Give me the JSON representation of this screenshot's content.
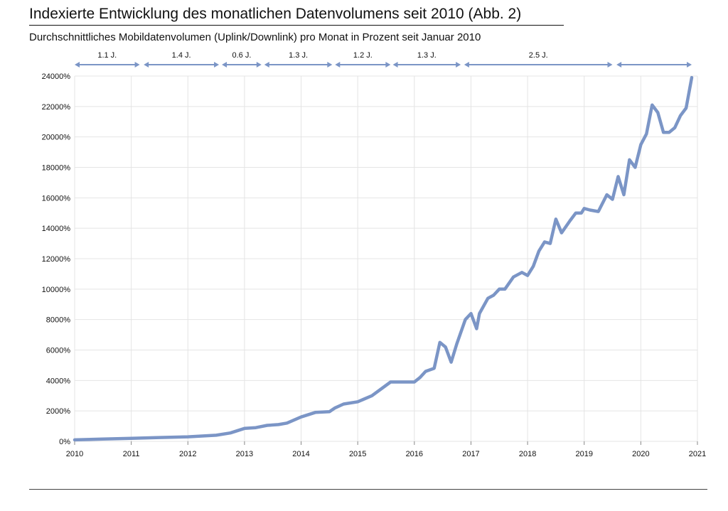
{
  "title": "Indexierte Entwicklung des monatlichen Datenvolumens seit 2010  (Abb. 2)",
  "subtitle": "Durchschnittliches Mobildatenvolumen (Uplink/Downlink) pro Monat in Prozent seit Januar 2010",
  "colors": {
    "line": "#7b95c6",
    "grid": "#e4e4e4",
    "text": "#111111"
  },
  "chart_data": {
    "type": "line",
    "title": "Indexierte Entwicklung des monatlichen Datenvolumens seit 2010  (Abb. 2)",
    "subtitle": "Durchschnittliches Mobildatenvolumen (Uplink/Downlink) pro Monat in Prozent seit Januar 2010",
    "xlabel": "",
    "ylabel": "",
    "xlim": [
      2010,
      2021
    ],
    "ylim": [
      0,
      24000
    ],
    "x_ticks": [
      "2010",
      "2011",
      "2012",
      "2013",
      "2014",
      "2015",
      "2016",
      "2017",
      "2018",
      "2019",
      "2020",
      "2021"
    ],
    "y_ticks": [
      "0%",
      "2000%",
      "4000%",
      "6000%",
      "8000%",
      "10000%",
      "12000%",
      "14000%",
      "16000%",
      "18000%",
      "20000%",
      "22000%",
      "24000%"
    ],
    "grid": true,
    "doubling_intervals": [
      {
        "label": "1.1 J.",
        "start": 2010.0,
        "end": 2011.15
      },
      {
        "label": "1.4 J.",
        "start": 2011.22,
        "end": 2012.55
      },
      {
        "label": "0.6 J.",
        "start": 2012.6,
        "end": 2013.3
      },
      {
        "label": "1.3 J.",
        "start": 2013.35,
        "end": 2014.55
      },
      {
        "label": "1.2 J.",
        "start": 2014.6,
        "end": 2015.58
      },
      {
        "label": "1.3 J.",
        "start": 2015.62,
        "end": 2016.82
      },
      {
        "label": "2.5 J.",
        "start": 2016.88,
        "end": 2019.5
      },
      {
        "label": "",
        "start": 2019.57,
        "end": 2020.9
      }
    ],
    "series": [
      {
        "x": [
          2010.0,
          2010.5,
          2011.0,
          2011.5,
          2012.0,
          2012.5,
          2012.75,
          2013.0,
          2013.2,
          2013.4,
          2013.6,
          2013.75,
          2014.0,
          2014.25,
          2014.5,
          2014.6,
          2014.75,
          2015.0,
          2015.25,
          2015.58,
          2016.0,
          2016.1,
          2016.2,
          2016.35,
          2016.45,
          2016.55,
          2016.65,
          2016.75,
          2016.9,
          2017.0,
          2017.1,
          2017.15,
          2017.3,
          2017.4,
          2017.5,
          2017.6,
          2017.75,
          2017.9,
          2018.0,
          2018.1,
          2018.2,
          2018.3,
          2018.4,
          2018.5,
          2018.6,
          2018.75,
          2018.85,
          2018.95,
          2019.0,
          2019.1,
          2019.25,
          2019.4,
          2019.5,
          2019.6,
          2019.7,
          2019.8,
          2019.9,
          2020.0,
          2020.1,
          2020.2,
          2020.3,
          2020.4,
          2020.5,
          2020.6,
          2020.7,
          2020.8,
          2020.9
        ],
        "values": [
          100,
          150,
          200,
          250,
          300,
          400,
          550,
          850,
          900,
          1050,
          1100,
          1200,
          1600,
          1900,
          1950,
          2200,
          2450,
          2600,
          3000,
          3900,
          3900,
          4200,
          4600,
          4800,
          6500,
          6200,
          5200,
          6400,
          8000,
          8400,
          7400,
          8400,
          9400,
          9600,
          10000,
          10000,
          10800,
          11100,
          10900,
          11500,
          12500,
          13100,
          13000,
          14600,
          13700,
          14500,
          15000,
          15000,
          15300,
          15200,
          15100,
          16200,
          15900,
          17400,
          16200,
          18500,
          18000,
          19500,
          20200,
          22100,
          21600,
          20300,
          20300,
          20600,
          21400,
          21900,
          23900
        ]
      }
    ]
  }
}
